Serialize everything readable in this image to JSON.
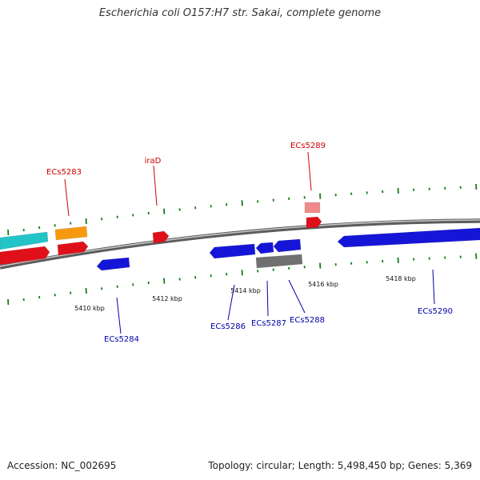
{
  "title": "Escherichia coli O157:H7 str. Sakai, complete genome",
  "footer": {
    "accession": "Accession: NC_002695",
    "summary": "Topology: circular; Length: 5,498,450 bp; Genes: 5,369"
  },
  "colors": {
    "forward_label": "#cc0000",
    "reverse_label": "#0000aa",
    "tick": "#1a7a1a",
    "backbone": "#8a8a8a"
  },
  "scale_labels": [
    {
      "kbp": 5410,
      "label": "5410 kbp"
    },
    {
      "kbp": 5412,
      "label": "5412 kbp"
    },
    {
      "kbp": 5414,
      "label": "5414 kbp"
    },
    {
      "kbp": 5416,
      "label": "5416 kbp"
    },
    {
      "kbp": 5418,
      "label": "5418 kbp"
    }
  ],
  "gene_labels": [
    {
      "name": "ECs5283",
      "strand": "forward"
    },
    {
      "name": "iraD",
      "strand": "forward"
    },
    {
      "name": "ECs5289",
      "strand": "forward"
    },
    {
      "name": "ECs5284",
      "strand": "reverse"
    },
    {
      "name": "ECs5286",
      "strand": "reverse"
    },
    {
      "name": "ECs5287",
      "strand": "reverse"
    },
    {
      "name": "ECs5288",
      "strand": "reverse"
    },
    {
      "name": "ECs5290",
      "strand": "reverse"
    }
  ],
  "features": [
    {
      "id": "cyan-1",
      "color": "#22c4c8"
    },
    {
      "id": "orange-1",
      "color": "#f59a10"
    },
    {
      "id": "red-1",
      "color": "#e0101a"
    },
    {
      "id": "red-2",
      "color": "#e0101a"
    },
    {
      "id": "red-iraD",
      "color": "#e0101a"
    },
    {
      "id": "pink-1",
      "color": "#f08a8a"
    },
    {
      "id": "red-5289",
      "color": "#e0101a"
    },
    {
      "id": "blue-5284",
      "color": "#1515d8"
    },
    {
      "id": "blue-5286",
      "color": "#1515d8"
    },
    {
      "id": "blue-5287",
      "color": "#1515d8"
    },
    {
      "id": "blue-5288",
      "color": "#1515d8"
    },
    {
      "id": "gray-1",
      "color": "#707070"
    },
    {
      "id": "blue-5290",
      "color": "#1515d8"
    }
  ]
}
